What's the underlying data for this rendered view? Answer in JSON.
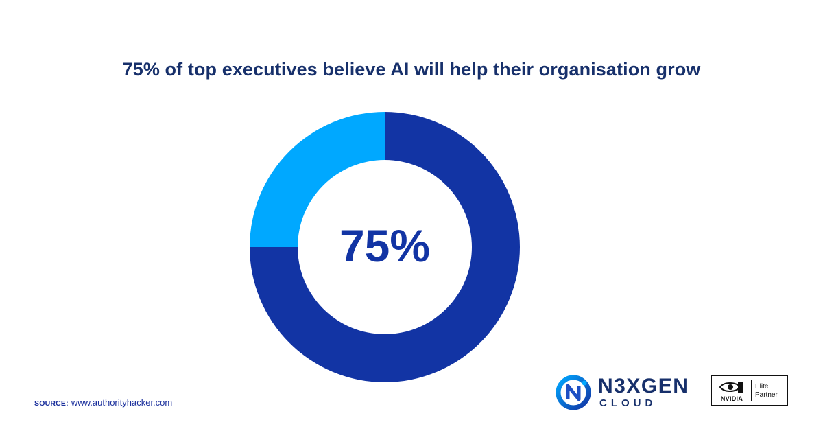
{
  "chart_data": {
    "type": "pie",
    "title": "75% of top executives believe AI will help their organisation grow",
    "center_label": "75%",
    "slices": [
      {
        "value": 75,
        "color": "#1234a4"
      },
      {
        "value": 25,
        "color": "#00a8ff"
      }
    ]
  },
  "source": {
    "label": "SOURCE:",
    "text": "www.authorityhacker.com"
  },
  "brand": {
    "name": "N3XGEN",
    "subtitle": "CLOUD"
  },
  "partner_badge": {
    "brand": "NVIDIA",
    "line1": "Elite",
    "line2": "Partner"
  }
}
